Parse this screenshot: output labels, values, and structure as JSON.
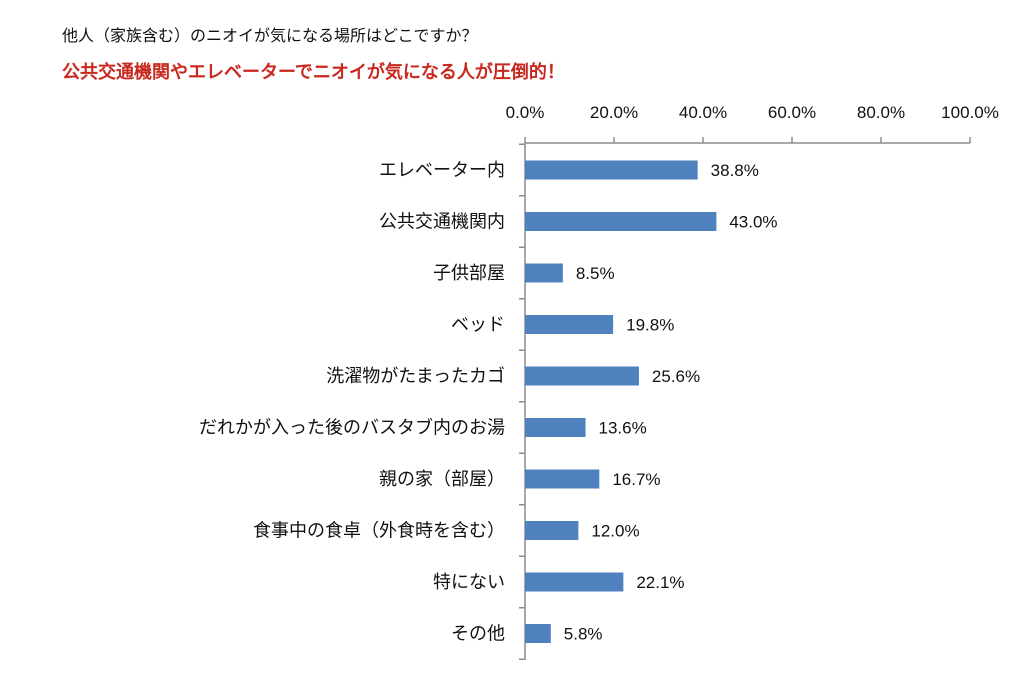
{
  "title": "他人（家族含む）のニオイが気になる場所はどこですか？",
  "subtitle": "公共交通機関やエレベーターでニオイが気になる人が圧倒的！",
  "colors": {
    "bar": "#4e81bd",
    "subtitle": "#c8281e",
    "axis": "#8c8c8c"
  },
  "chart_data": {
    "type": "bar",
    "orientation": "horizontal",
    "xlim": [
      0,
      100
    ],
    "ticks": [
      "0.0%",
      "20.0%",
      "40.0%",
      "60.0%",
      "80.0%",
      "100.0%"
    ],
    "tick_values": [
      0,
      20,
      40,
      60,
      80,
      100
    ],
    "axis_position": "top",
    "grid": false,
    "categories": [
      "エレベーター内",
      "公共交通機関内",
      "子供部屋",
      "ベッド",
      "洗濯物がたまったカゴ",
      "だれかが入った後のバスタブ内のお湯",
      "親の家（部屋）",
      "食事中の食卓（外食時を含む）",
      "特にない",
      "その他"
    ],
    "values": [
      38.8,
      43.0,
      8.5,
      19.8,
      25.6,
      13.6,
      16.7,
      12.0,
      22.1,
      5.8
    ],
    "value_labels": [
      "38.8%",
      "43.0%",
      "8.5%",
      "19.8%",
      "25.6%",
      "13.6%",
      "16.7%",
      "12.0%",
      "22.1%",
      "5.8%"
    ]
  }
}
